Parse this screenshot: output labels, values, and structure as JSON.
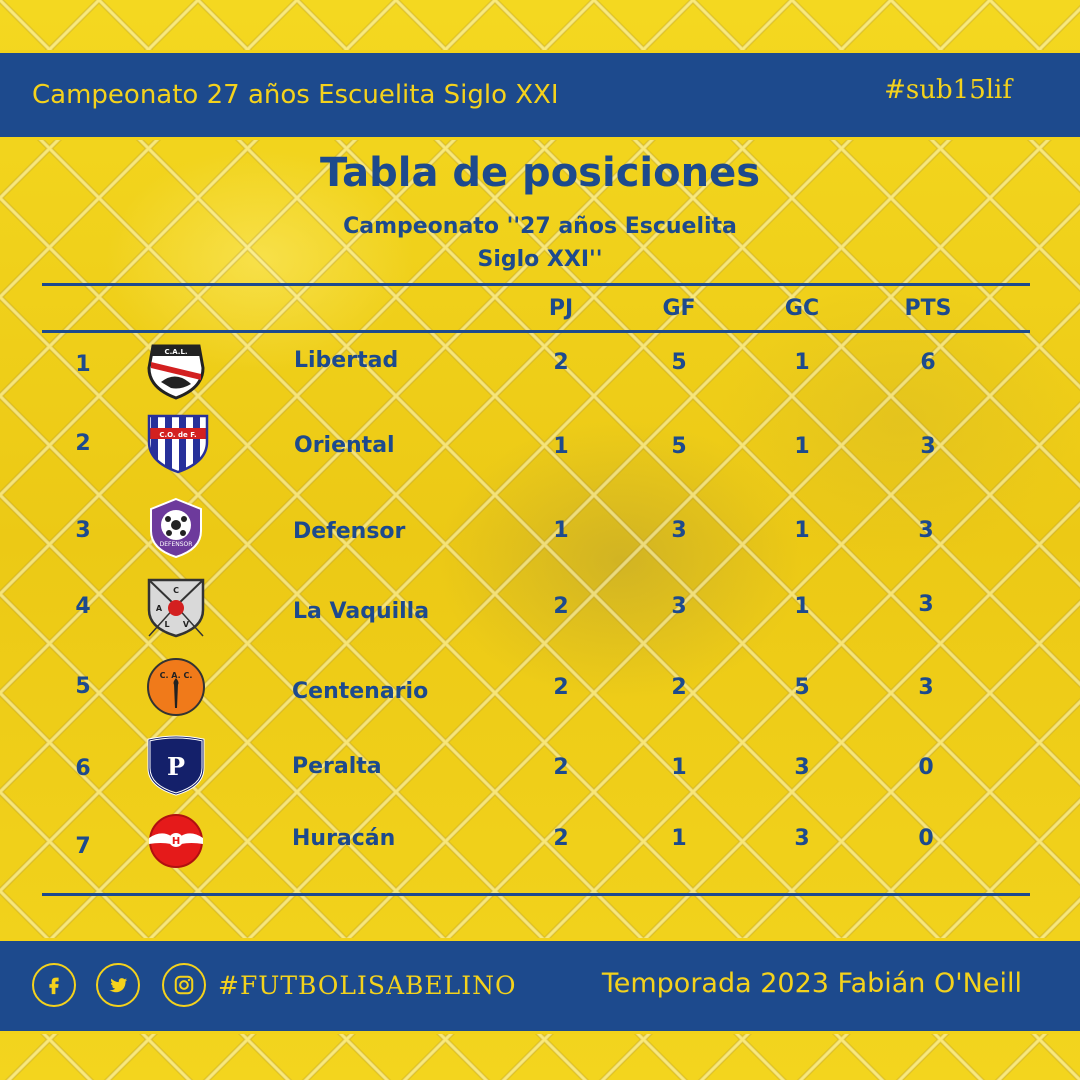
{
  "header": {
    "title": "Campeonato 27 años Escuelita Siglo XXI",
    "hashtag": "#sub15lif"
  },
  "table_title": "Tabla de posiciones",
  "table_subtitle_line1": "Campeonato ''27 años Escuelita",
  "table_subtitle_line2": "Siglo XXI''",
  "columns": {
    "pj": "PJ",
    "gf": "GF",
    "gc": "GC",
    "pts": "PTS"
  },
  "rows": [
    {
      "pos": "1",
      "team": "Libertad",
      "pj": "2",
      "gf": "5",
      "gc": "1",
      "pts": "6",
      "crest": "libertad-crest-icon"
    },
    {
      "pos": "2",
      "team": "Oriental",
      "pj": "1",
      "gf": "5",
      "gc": "1",
      "pts": "3",
      "crest": "oriental-crest-icon"
    },
    {
      "pos": "3",
      "team": "Defensor",
      "pj": "1",
      "gf": "3",
      "gc": "1",
      "pts": "3",
      "crest": "defensor-crest-icon"
    },
    {
      "pos": "4",
      "team": "La Vaquilla",
      "pj": "2",
      "gf": "3",
      "gc": "1",
      "pts": "3",
      "crest": "la-vaquilla-crest-icon"
    },
    {
      "pos": "5",
      "team": "Centenario",
      "pj": "2",
      "gf": "2",
      "gc": "5",
      "pts": "3",
      "crest": "centenario-crest-icon"
    },
    {
      "pos": "6",
      "team": "Peralta",
      "pj": "2",
      "gf": "1",
      "gc": "3",
      "pts": "0",
      "crest": "peralta-crest-icon"
    },
    {
      "pos": "7",
      "team": "Huracán",
      "pj": "2",
      "gf": "1",
      "gc": "3",
      "pts": "0",
      "crest": "huracan-crest-icon"
    }
  ],
  "crest_text": {
    "libertad": "C.A.L.",
    "oriental": "C.O. de F.",
    "defensor": "DEFENSOR",
    "vaquilla": [
      "C",
      "A",
      "L",
      "V"
    ],
    "centenario": "C. A. C.",
    "peralta": "P",
    "huracan": "H"
  },
  "footer": {
    "social": [
      "facebook-icon",
      "twitter-icon",
      "instagram-icon"
    ],
    "hashtag": "#FUTBOLISABELINO",
    "credit": "Temporada 2023 Fabián O'Neill"
  },
  "colors": {
    "navy": "#1d4a8d",
    "yellow": "#f4d21c"
  }
}
